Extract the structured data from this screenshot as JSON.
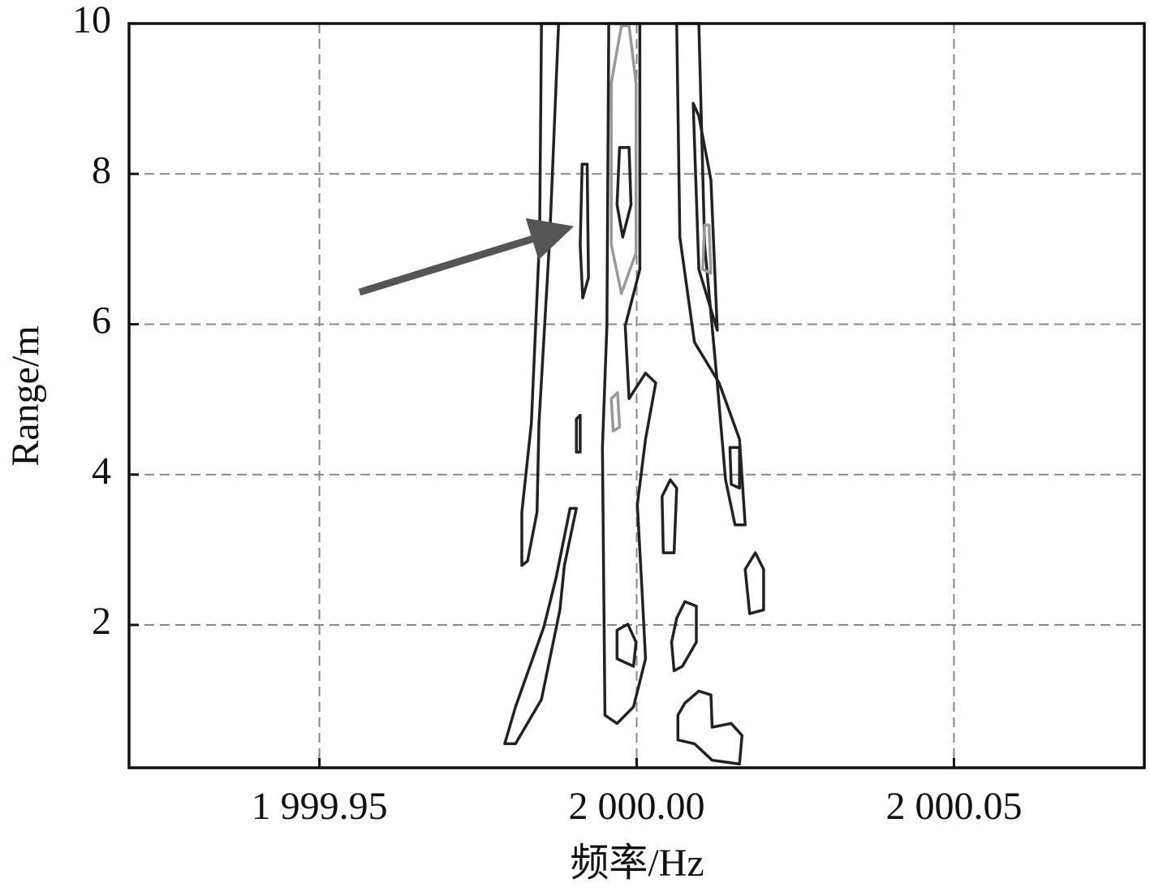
{
  "chart_data": {
    "type": "contour",
    "xlabel": "频率/Hz",
    "ylabel": "Range/m",
    "xlim": [
      1999.92,
      2000.08
    ],
    "ylim": [
      0.1,
      10
    ],
    "xticks": [
      {
        "value": 1999.95,
        "label": "1 999.95"
      },
      {
        "value": 2000.0,
        "label": "2 000.00"
      },
      {
        "value": 2000.05,
        "label": "2 000.05"
      }
    ],
    "yticks": [
      2,
      4,
      6,
      8,
      10
    ],
    "grid": true,
    "contours": [
      {
        "color": "#222222",
        "x": [
          1999.985,
          1999.9847,
          1999.9834,
          1999.9819,
          1999.9819,
          1999.9828,
          1999.9843,
          1999.9846,
          1999.9863,
          1999.9877
        ],
        "y": [
          10.0,
          7.16,
          4.68,
          3.5,
          2.79,
          2.85,
          3.5,
          4.68,
          7.16,
          10.0
        ]
      },
      {
        "color": "#222222",
        "x": [
          1999.9792,
          1999.9809,
          1999.9854,
          1999.9873,
          1999.9895,
          1999.9905,
          1999.9886,
          1999.9879,
          1999.985,
          1999.9809
        ],
        "y": [
          0.42,
          0.91,
          1.98,
          2.63,
          3.55,
          3.55,
          2.79,
          2.2,
          1.01,
          0.42
        ]
      },
      {
        "color": "#222222",
        "x": [
          1999.9956,
          1999.9953,
          1999.9946,
          1999.995,
          1999.9969,
          1999.9995,
          2000.0014,
          2000.0008,
          2000.0001,
          2000.0014,
          2000.003,
          2000.0014,
          1999.9988,
          1999.9982,
          2000.0005,
          2000.0005
        ],
        "y": [
          10.0,
          5.98,
          4.36,
          0.8,
          0.69,
          0.91,
          1.55,
          2.52,
          3.6,
          4.47,
          5.22,
          5.35,
          5.01,
          5.98,
          6.73,
          10.0
        ]
      },
      {
        "color": "#222222",
        "x": [
          2000.0063,
          2000.0068,
          2000.0091,
          2000.013,
          2000.0162,
          2000.0171,
          2000.0155,
          2000.014,
          2000.0127,
          2000.0107,
          2000.0098
        ],
        "y": [
          10.0,
          7.16,
          5.76,
          5.22,
          4.47,
          3.33,
          3.33,
          3.93,
          5.22,
          7.06,
          10.0
        ]
      },
      {
        "color": "#222222",
        "x": [
          2000.0089,
          2000.0098,
          2000.0127,
          2000.0117,
          2000.0098
        ],
        "y": [
          8.94,
          6.73,
          5.92,
          7.92,
          8.77
        ]
      },
      {
        "color": "#222222",
        "x": [
          1999.9914,
          1999.9911,
          1999.9915,
          1999.9924,
          1999.9922
        ],
        "y": [
          8.13,
          7.05,
          6.35,
          6.62,
          8.13
        ]
      },
      {
        "color": "#222222",
        "x": [
          1999.9973,
          1999.9969,
          1999.9978,
          1999.9991,
          1999.9988
        ],
        "y": [
          8.35,
          7.59,
          7.16,
          7.59,
          8.35
        ]
      },
      {
        "color": "#999999",
        "x": [
          1999.9976,
          1999.996,
          1999.996,
          1999.9976,
          1999.9999,
          1999.9999,
          1999.9988
        ],
        "y": [
          9.97,
          9.21,
          7.06,
          6.41,
          6.95,
          9.21,
          9.97
        ]
      },
      {
        "color": "#222222",
        "x": [
          1999.9905,
          1999.9905,
          1999.9911,
          1999.9911
        ],
        "y": [
          4.74,
          4.3,
          4.3,
          4.79
        ]
      },
      {
        "color": "#222222",
        "x": [
          2000.004,
          2000.0042,
          2000.0059,
          2000.0063,
          2000.0053
        ],
        "y": [
          3.71,
          2.96,
          2.96,
          3.82,
          3.93
        ]
      },
      {
        "color": "#222222",
        "x": [
          2000.0171,
          2000.0178,
          2000.02,
          2000.02,
          2000.0187
        ],
        "y": [
          2.74,
          2.15,
          2.2,
          2.74,
          2.96
        ]
      },
      {
        "color": "#222222",
        "x": [
          2000.0055,
          2000.0059,
          2000.0072,
          2000.0094,
          2000.0094,
          2000.0076,
          2000.0063
        ],
        "y": [
          1.77,
          1.39,
          1.45,
          1.77,
          2.25,
          2.31,
          2.09
        ]
      },
      {
        "color": "#222222",
        "x": [
          2000.0065,
          2000.0065,
          2000.0091,
          2000.0119,
          2000.0162,
          2000.0166,
          2000.0149,
          2000.0119,
          2000.0117,
          2000.0098,
          2000.0076
        ],
        "y": [
          0.8,
          0.47,
          0.42,
          0.2,
          0.15,
          0.53,
          0.69,
          0.64,
          1.07,
          1.12,
          0.96
        ]
      },
      {
        "color": "#222222",
        "x": [
          1999.9969,
          1999.9969,
          1999.9995,
          1999.9999,
          1999.9986
        ],
        "y": [
          1.93,
          1.55,
          1.45,
          1.77,
          2.01
        ]
      },
      {
        "color": "#999999",
        "x": [
          1999.996,
          1999.9963,
          1999.9973,
          1999.997
        ],
        "y": [
          5.01,
          4.58,
          4.63,
          5.09
        ]
      },
      {
        "color": "#999999",
        "x": [
          2000.0107,
          2000.0104,
          2000.0117,
          2000.0114
        ],
        "y": [
          7.32,
          6.73,
          6.68,
          7.32
        ]
      },
      {
        "color": "#222222",
        "x": [
          2000.0147,
          2000.0149,
          2000.0162,
          2000.0162
        ],
        "y": [
          4.36,
          3.87,
          3.82,
          4.36
        ]
      }
    ]
  }
}
